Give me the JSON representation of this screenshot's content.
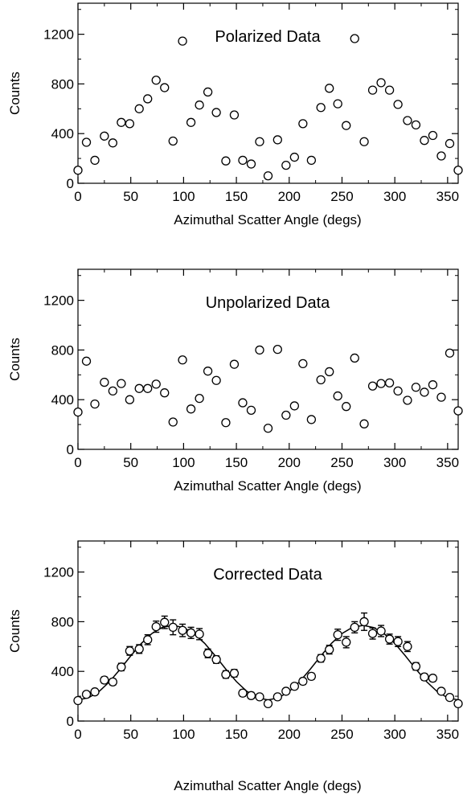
{
  "chart_data": [
    {
      "type": "scatter",
      "title": "Polarized Data",
      "xlabel": "Azimuthal Scatter Angle (degs)",
      "ylabel": "Counts",
      "xlim": [
        0,
        360
      ],
      "ylim": [
        0,
        1450
      ],
      "xticks": [
        0,
        50,
        100,
        150,
        200,
        250,
        300,
        350
      ],
      "yticks": [
        0,
        400,
        800,
        1200
      ],
      "grid": false,
      "marker": "open-circle",
      "x": [
        0,
        8,
        16,
        25,
        33,
        41,
        49,
        58,
        66,
        74,
        82,
        90,
        99,
        107,
        115,
        123,
        131,
        140,
        148,
        156,
        164,
        172,
        180,
        189,
        197,
        205,
        213,
        221,
        230,
        238,
        246,
        254,
        262,
        271,
        279,
        287,
        295,
        303,
        312,
        320,
        328,
        336,
        344,
        352,
        360
      ],
      "y": [
        105,
        330,
        185,
        380,
        325,
        490,
        480,
        600,
        680,
        830,
        770,
        340,
        1145,
        490,
        630,
        735,
        570,
        180,
        550,
        185,
        155,
        335,
        60,
        350,
        145,
        210,
        480,
        185,
        610,
        765,
        640,
        465,
        1165,
        335,
        750,
        810,
        750,
        635,
        505,
        470,
        345,
        385,
        220,
        320,
        105
      ]
    },
    {
      "type": "scatter",
      "title": "Unpolarized Data",
      "xlabel": "Azimuthal Scatter Angle (degs)",
      "ylabel": "Counts",
      "xlim": [
        0,
        360
      ],
      "ylim": [
        0,
        1450
      ],
      "xticks": [
        0,
        50,
        100,
        150,
        200,
        250,
        300,
        350
      ],
      "yticks": [
        0,
        400,
        800,
        1200
      ],
      "grid": false,
      "marker": "open-circle",
      "x": [
        0,
        8,
        16,
        25,
        33,
        41,
        49,
        58,
        66,
        74,
        82,
        90,
        99,
        107,
        115,
        123,
        131,
        140,
        148,
        156,
        164,
        172,
        180,
        189,
        197,
        205,
        213,
        221,
        230,
        238,
        246,
        254,
        262,
        271,
        279,
        287,
        295,
        303,
        312,
        320,
        328,
        336,
        344,
        352,
        360
      ],
      "y": [
        300,
        710,
        365,
        540,
        470,
        530,
        400,
        490,
        490,
        525,
        455,
        220,
        720,
        325,
        410,
        630,
        555,
        215,
        685,
        375,
        315,
        800,
        170,
        805,
        275,
        350,
        690,
        240,
        560,
        625,
        430,
        345,
        735,
        205,
        510,
        530,
        535,
        470,
        395,
        500,
        460,
        520,
        420,
        775,
        310
      ]
    },
    {
      "type": "scatter",
      "title": "Corrected Data",
      "xlabel": "Azimuthal Scatter Angle (degs)",
      "ylabel": "Counts",
      "xlim": [
        0,
        360
      ],
      "ylim": [
        0,
        1450
      ],
      "xticks": [
        0,
        50,
        100,
        150,
        200,
        250,
        300,
        350
      ],
      "yticks": [
        0,
        400,
        800,
        1200
      ],
      "grid": false,
      "marker": "open-circle",
      "error_bars": true,
      "x": [
        0,
        8,
        16,
        25,
        33,
        41,
        49,
        58,
        66,
        74,
        82,
        90,
        99,
        107,
        115,
        123,
        131,
        140,
        148,
        156,
        164,
        172,
        180,
        189,
        197,
        205,
        213,
        221,
        230,
        238,
        246,
        254,
        262,
        271,
        279,
        287,
        295,
        303,
        312,
        320,
        328,
        336,
        344,
        352,
        360
      ],
      "y": [
        165,
        215,
        235,
        330,
        315,
        435,
        565,
        580,
        655,
        760,
        795,
        755,
        730,
        710,
        700,
        545,
        495,
        375,
        385,
        225,
        205,
        195,
        140,
        195,
        240,
        280,
        320,
        360,
        505,
        575,
        695,
        635,
        755,
        800,
        705,
        725,
        660,
        640,
        600,
        440,
        355,
        345,
        240,
        190,
        140
      ],
      "yerr": [
        20,
        20,
        20,
        25,
        25,
        30,
        35,
        35,
        40,
        45,
        50,
        60,
        50,
        45,
        45,
        35,
        30,
        30,
        30,
        25,
        25,
        20,
        20,
        20,
        20,
        20,
        25,
        25,
        30,
        35,
        45,
        45,
        45,
        70,
        45,
        45,
        40,
        40,
        40,
        30,
        25,
        25,
        20,
        20,
        20
      ],
      "fit": {
        "type": "line",
        "style": "solid",
        "x": [
          0,
          10,
          20,
          30,
          40,
          50,
          60,
          70,
          80,
          90,
          100,
          110,
          120,
          130,
          140,
          150,
          160,
          170,
          180,
          190,
          200,
          210,
          220,
          230,
          240,
          250,
          260,
          270,
          280,
          290,
          300,
          310,
          320,
          330,
          340,
          350,
          360
        ],
        "y": [
          170,
          187,
          238,
          318,
          418,
          525,
          625,
          705,
          755,
          770,
          753,
          703,
          625,
          525,
          418,
          318,
          238,
          187,
          170,
          187,
          238,
          318,
          418,
          525,
          625,
          705,
          755,
          770,
          753,
          703,
          625,
          525,
          418,
          318,
          238,
          187,
          170
        ]
      }
    }
  ]
}
